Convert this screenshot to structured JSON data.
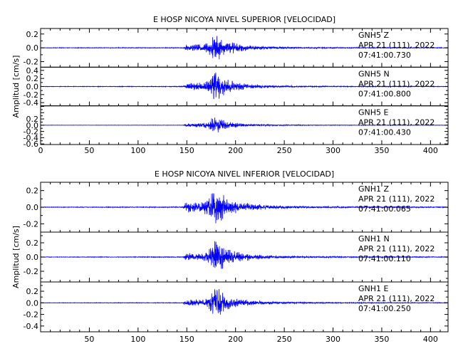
{
  "chart_data": [
    {
      "type": "line",
      "title": "E HOSP NICOYA NIVEL SUPERIOR [VELOCIDAD]",
      "ylabel": "Amplitud [cm/s]",
      "xlabel": "",
      "xlim": [
        0,
        418
      ],
      "x_ticks": [
        "0",
        "50",
        "100",
        "150",
        "200",
        "250",
        "300",
        "350",
        "400"
      ],
      "series_color": "#0000ff",
      "panels": [
        {
          "station": "GNH5 Z",
          "date": "APR 21 (111), 2022",
          "time": "07:41:00.730",
          "ylim": [
            -0.28,
            0.28
          ],
          "y_ticks": [
            "0.2",
            "0.0",
            "-0.2"
          ],
          "envelope_x": [
            0,
            146,
            148,
            152,
            158,
            165,
            172,
            176,
            179,
            182,
            186,
            190,
            196,
            205,
            215,
            230,
            250,
            280,
            320,
            418
          ],
          "envelope_y": [
            0.004,
            0.006,
            0.03,
            0.05,
            0.055,
            0.05,
            0.1,
            0.18,
            0.23,
            0.2,
            0.15,
            0.12,
            0.09,
            0.06,
            0.04,
            0.025,
            0.015,
            0.01,
            0.008,
            0.005
          ]
        },
        {
          "station": "GNH5 N",
          "date": "APR 21 (111), 2022",
          "time": "07:41:00.800",
          "ylim": [
            -0.48,
            0.48
          ],
          "y_ticks": [
            "0.4",
            "0.2",
            "0.0",
            "-0.2",
            "-0.4"
          ],
          "envelope_x": [
            0,
            146,
            148,
            152,
            158,
            165,
            172,
            176,
            179,
            182,
            186,
            190,
            196,
            205,
            215,
            230,
            250,
            280,
            320,
            418
          ],
          "envelope_y": [
            0.006,
            0.01,
            0.05,
            0.1,
            0.1,
            0.09,
            0.16,
            0.3,
            0.4,
            0.35,
            0.28,
            0.2,
            0.15,
            0.1,
            0.06,
            0.04,
            0.025,
            0.015,
            0.012,
            0.008
          ]
        },
        {
          "station": "GNH5 E",
          "date": "APR 21 (111), 2022",
          "time": "07:41:00.430",
          "ylim": [
            -0.62,
            0.62
          ],
          "y_ticks": [
            "0.2",
            "0.0",
            "-0.2",
            "-0.4",
            "-0.6"
          ],
          "envelope_x": [
            0,
            146,
            148,
            152,
            158,
            165,
            172,
            176,
            179,
            182,
            186,
            190,
            196,
            205,
            215,
            230,
            250,
            280,
            320,
            418
          ],
          "envelope_y": [
            0.004,
            0.006,
            0.04,
            0.06,
            0.07,
            0.06,
            0.12,
            0.24,
            0.3,
            0.26,
            0.2,
            0.15,
            0.11,
            0.07,
            0.045,
            0.03,
            0.018,
            0.012,
            0.009,
            0.006
          ]
        }
      ]
    },
    {
      "type": "line",
      "title": "E HOSP NICOYA NIVEL INFERIOR [VELOCIDAD]",
      "ylabel": "Amplitud [cm/s]",
      "xlabel": "",
      "xlim": [
        0,
        418
      ],
      "x_ticks": [
        "50",
        "100",
        "150",
        "200",
        "250",
        "300",
        "350",
        "400"
      ],
      "series_color": "#0000ff",
      "panels": [
        {
          "station": "GNH1 Z",
          "date": "APR 21 (111), 2022",
          "time": "07:41:00.065",
          "ylim": [
            -0.3,
            0.3
          ],
          "y_ticks": [
            "0.2",
            "0.0",
            "-0.2"
          ],
          "envelope_x": [
            0,
            146,
            148,
            152,
            158,
            165,
            172,
            176,
            179,
            182,
            186,
            190,
            196,
            205,
            215,
            230,
            250,
            280,
            320,
            418
          ],
          "envelope_y": [
            0.004,
            0.006,
            0.05,
            0.07,
            0.07,
            0.06,
            0.12,
            0.2,
            0.26,
            0.22,
            0.17,
            0.13,
            0.1,
            0.07,
            0.045,
            0.03,
            0.018,
            0.012,
            0.009,
            0.006
          ]
        },
        {
          "station": "GNH1 N",
          "date": "APR 21 (111), 2022",
          "time": "07:41:00.110",
          "ylim": [
            -0.35,
            0.35
          ],
          "y_ticks": [
            "0.2",
            "0.0",
            "-0.2"
          ],
          "envelope_x": [
            0,
            146,
            148,
            152,
            158,
            165,
            172,
            176,
            179,
            182,
            186,
            190,
            196,
            205,
            215,
            230,
            250,
            280,
            320,
            418
          ],
          "envelope_y": [
            0.004,
            0.006,
            0.04,
            0.06,
            0.06,
            0.05,
            0.1,
            0.2,
            0.26,
            0.23,
            0.18,
            0.13,
            0.1,
            0.07,
            0.045,
            0.03,
            0.018,
            0.012,
            0.009,
            0.006
          ]
        },
        {
          "station": "GNH1 E",
          "date": "APR 21 (111), 2022",
          "time": "07:41:00.250",
          "ylim": [
            -0.5,
            0.36
          ],
          "y_ticks": [
            "0.2",
            "0.0",
            "-0.2",
            "-0.4"
          ],
          "envelope_x": [
            0,
            146,
            148,
            152,
            158,
            165,
            172,
            176,
            179,
            182,
            186,
            190,
            196,
            205,
            215,
            230,
            250,
            280,
            320,
            418
          ],
          "envelope_y": [
            0.004,
            0.006,
            0.04,
            0.06,
            0.06,
            0.05,
            0.1,
            0.22,
            0.32,
            0.28,
            0.2,
            0.14,
            0.1,
            0.07,
            0.045,
            0.03,
            0.018,
            0.012,
            0.009,
            0.006
          ]
        }
      ]
    }
  ]
}
